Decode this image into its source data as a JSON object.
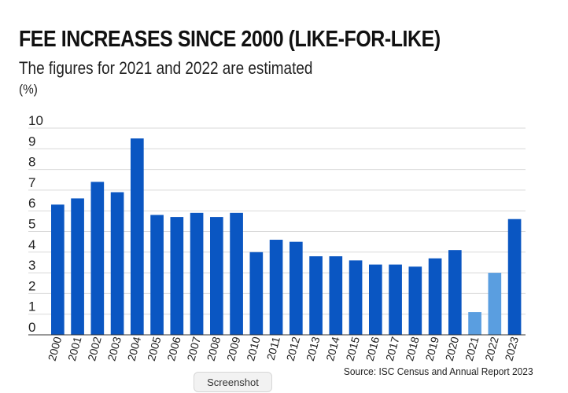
{
  "chart_data": {
    "type": "bar",
    "title": "FEE INCREASES SINCE 2000 (LIKE-FOR-LIKE)",
    "subtitle": "The figures for 2021 and 2022 are estimated",
    "ylabel": "(%)",
    "xlabel": "",
    "ylim": [
      0,
      10
    ],
    "yticks": [
      0,
      1,
      2,
      3,
      4,
      5,
      6,
      7,
      8,
      9,
      10
    ],
    "grid": true,
    "categories": [
      "2000",
      "2001",
      "2002",
      "2003",
      "2004",
      "2005",
      "2006",
      "2007",
      "2008",
      "2009",
      "2010",
      "2011",
      "2012",
      "2013",
      "2014",
      "2015",
      "2016",
      "2017",
      "2018",
      "2019",
      "2020",
      "2021",
      "2022",
      "2023"
    ],
    "values": [
      6.3,
      6.6,
      7.4,
      6.9,
      9.5,
      5.8,
      5.7,
      5.9,
      5.7,
      5.9,
      4.0,
      4.6,
      4.5,
      3.8,
      3.8,
      3.6,
      3.4,
      3.4,
      3.3,
      3.7,
      4.1,
      1.1,
      3.0,
      5.6
    ],
    "estimated": [
      false,
      false,
      false,
      false,
      false,
      false,
      false,
      false,
      false,
      false,
      false,
      false,
      false,
      false,
      false,
      false,
      false,
      false,
      false,
      false,
      false,
      true,
      true,
      false
    ],
    "source": "Source: ISC Census and Annual Report 2023"
  },
  "colors": {
    "bar": "#0a56c2",
    "bar_estimated": "#5a9ee0",
    "grid": "#d9d9d9",
    "axis": "#333333"
  },
  "ui": {
    "screenshot_button_label": "Screenshot"
  }
}
